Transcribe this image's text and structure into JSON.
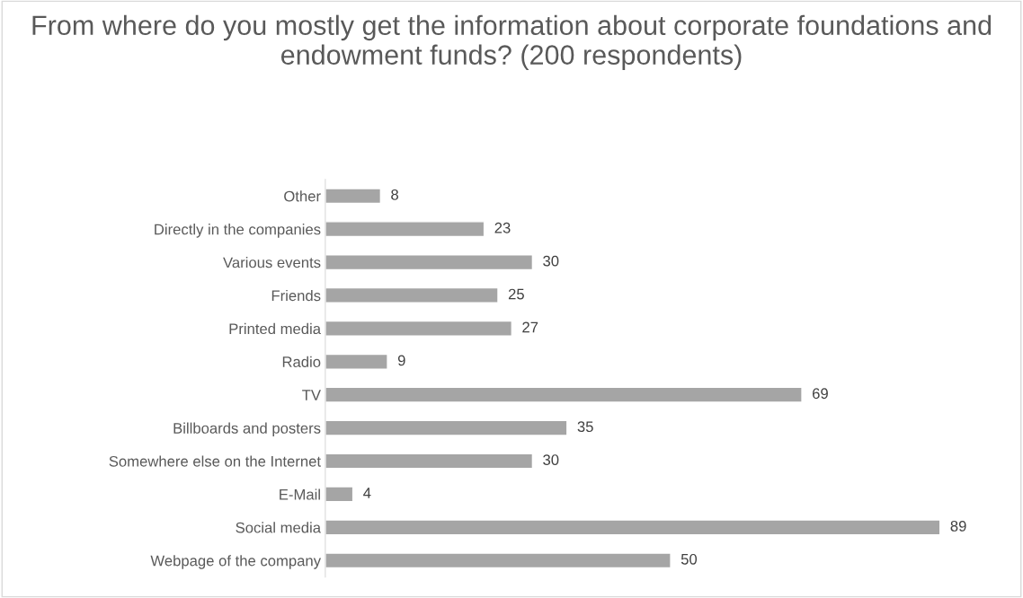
{
  "chart_data": {
    "type": "bar",
    "orientation": "horizontal",
    "title": "From where do you mostly get the information about corporate foundations and endowment funds? (200 respondents)",
    "categories": [
      "Other",
      "Directly in the companies",
      "Various events",
      "Friends",
      "Printed media",
      "Radio",
      "TV",
      "Billboards and posters",
      "Somewhere else on the Internet",
      "E-Mail",
      "Social media",
      "Webpage of the company"
    ],
    "values": [
      8,
      23,
      30,
      25,
      27,
      9,
      69,
      35,
      30,
      4,
      89,
      50
    ],
    "color": "#a5a5a5",
    "data_labels": true,
    "grid": false,
    "legend": false,
    "tick_labels": "y"
  }
}
